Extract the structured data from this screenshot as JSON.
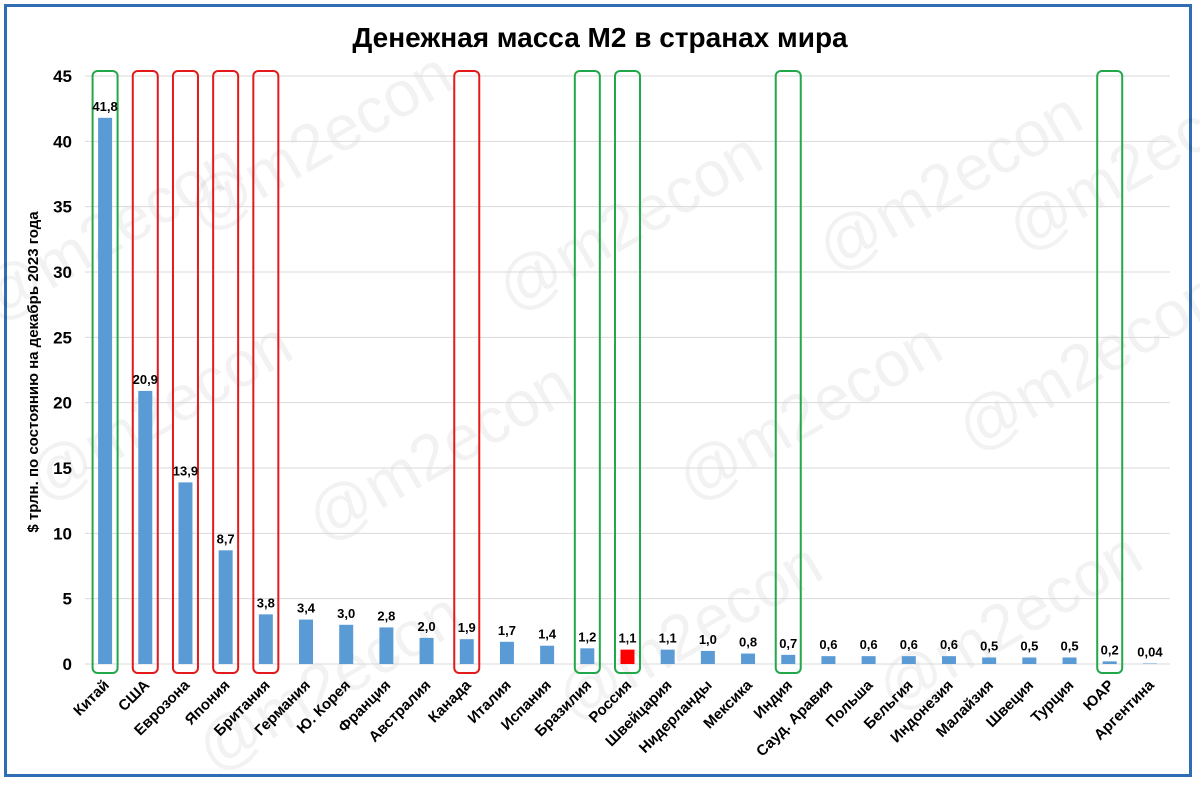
{
  "watermark": "@m2econ",
  "chart_data": {
    "type": "bar",
    "title": "Денежная масса М2 в странах мира",
    "ylabel": "$ трлн. по состоянию на декабрь 2023 года",
    "xlabel": "",
    "ylim": [
      0,
      45
    ],
    "yticks": [
      0,
      5,
      10,
      15,
      20,
      25,
      30,
      35,
      40,
      45
    ],
    "grid": true,
    "categories": [
      "Китай",
      "США",
      "Еврозона",
      "Япония",
      "Британия",
      "Германия",
      "Ю. Корея",
      "Франция",
      "Австралия",
      "Канада",
      "Италия",
      "Испания",
      "Бразилия",
      "Россия",
      "Швейцария",
      "Нидерланды",
      "Мексика",
      "Индия",
      "Сауд. Аравия",
      "Польша",
      "Бельгия",
      "Индонезия",
      "Малайзия",
      "Швеция",
      "Турция",
      "ЮАР",
      "Аргентина"
    ],
    "values": [
      41.8,
      20.9,
      13.9,
      8.7,
      3.8,
      3.4,
      3.0,
      2.8,
      2.0,
      1.9,
      1.7,
      1.4,
      1.2,
      1.1,
      1.1,
      1.0,
      0.8,
      0.7,
      0.6,
      0.6,
      0.6,
      0.6,
      0.5,
      0.5,
      0.5,
      0.2,
      0.04
    ],
    "data_labels": [
      "41,8",
      "20,9",
      "13,9",
      "8,7",
      "3,8",
      "3,4",
      "3,0",
      "2,8",
      "2,0",
      "1,9",
      "1,7",
      "1,4",
      "1,2",
      "1,1",
      "1,1",
      "1,0",
      "0,8",
      "0,7",
      "0,6",
      "0,6",
      "0,6",
      "0,6",
      "0,5",
      "0,5",
      "0,5",
      "0,2",
      "0,04"
    ],
    "colors": {
      "bar": "#5b9bd5",
      "highlight_bar": "#ff0000",
      "highlighted_category": "Россия",
      "grid": "#d9d9d9",
      "frame": "#2f6eb5"
    },
    "red_outlined": [
      "США",
      "Еврозона",
      "Япония",
      "Британия",
      "Канада"
    ],
    "green_outlined": [
      "Китай",
      "Бразилия",
      "Россия",
      "Индия",
      "ЮАР"
    ],
    "outline_colors": {
      "red": "#e31a1c",
      "green": "#22a84a"
    }
  }
}
